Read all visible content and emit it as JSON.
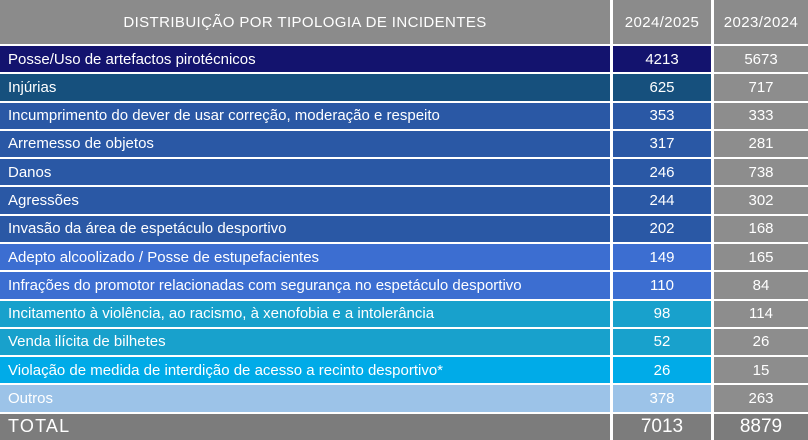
{
  "header": {
    "title": "DISTRIBUIÇÃO POR TIPOLOGIA DE INCIDENTES",
    "col_current": "2024/2025",
    "col_previous": "2023/2024"
  },
  "colors": {
    "header_gray": "#8B8B8B",
    "value_col_gray": "#8D8D8D",
    "total_gray": "#7C7C7C",
    "text_white": "#FFFFFF",
    "row_navy": "#13136E",
    "row_dark_steel": "#16507D",
    "row_medium_blue": "#2A58A5",
    "row_bright_blue": "#3C6ED1",
    "row_teal": "#18A1CC",
    "row_cyan": "#00ABE8",
    "row_light_blue": "#9CC3E8"
  },
  "rows": [
    {
      "label": "Posse/Uso de artefactos pirotécnicos",
      "v1": "4213",
      "v2": "5673",
      "color": "#13136E"
    },
    {
      "label": "Injúrias",
      "v1": "625",
      "v2": "717",
      "color": "#16507D"
    },
    {
      "label": "Incumprimento do dever de usar correção, moderação e respeito",
      "v1": "353",
      "v2": "333",
      "color": "#2A58A5"
    },
    {
      "label": "Arremesso de objetos",
      "v1": "317",
      "v2": "281",
      "color": "#2A58A5"
    },
    {
      "label": "Danos",
      "v1": "246",
      "v2": "738",
      "color": "#2A58A5"
    },
    {
      "label": "Agressões",
      "v1": "244",
      "v2": "302",
      "color": "#2A58A5"
    },
    {
      "label": "Invasão da área de espetáculo desportivo",
      "v1": "202",
      "v2": "168",
      "color": "#2A58A5"
    },
    {
      "label": "Adepto alcoolizado / Posse de estupefacientes",
      "v1": "149",
      "v2": "165",
      "color": "#3C6ED1"
    },
    {
      "label": "Infrações do promotor relacionadas com segurança no espetáculo desportivo",
      "v1": "110",
      "v2": "84",
      "color": "#3C6ED1"
    },
    {
      "label": "Incitamento à violência, ao racismo, à xenofobia e a intolerância",
      "v1": "98",
      "v2": "114",
      "color": "#18A1CC"
    },
    {
      "label": "Venda ilícita de bilhetes",
      "v1": "52",
      "v2": "26",
      "color": "#18A1CC"
    },
    {
      "label": "Violação de medida de interdição de acesso a recinto desportivo*",
      "v1": "26",
      "v2": "15",
      "color": "#00ABE8"
    },
    {
      "label": "Outros",
      "v1": "378",
      "v2": "263",
      "color": "#9CC3E8"
    }
  ],
  "total": {
    "label": "TOTAL",
    "v1": "7013",
    "v2": "8879"
  },
  "chart_data": {
    "type": "table",
    "title": "DISTRIBUIÇÃO POR TIPOLOGIA DE INCIDENTES",
    "categories": [
      "Posse/Uso de artefactos pirotécnicos",
      "Injúrias",
      "Incumprimento do dever de usar correção, moderação e respeito",
      "Arremesso de objetos",
      "Danos",
      "Agressões",
      "Invasão da área de espetáculo desportivo",
      "Adepto alcoolizado / Posse de estupefacientes",
      "Infrações do promotor relacionadas com segurança no espetáculo desportivo",
      "Incitamento à violência, ao racismo, à xenofobia e a intolerância",
      "Venda ilícita de bilhetes",
      "Violação de medida de interdição de acesso a recinto desportivo*",
      "Outros",
      "TOTAL"
    ],
    "series": [
      {
        "name": "2024/2025",
        "values": [
          4213,
          625,
          353,
          317,
          246,
          244,
          202,
          149,
          110,
          98,
          52,
          26,
          378,
          7013
        ]
      },
      {
        "name": "2023/2024",
        "values": [
          5673,
          717,
          333,
          281,
          738,
          302,
          168,
          165,
          84,
          114,
          26,
          15,
          263,
          8879
        ]
      }
    ]
  }
}
